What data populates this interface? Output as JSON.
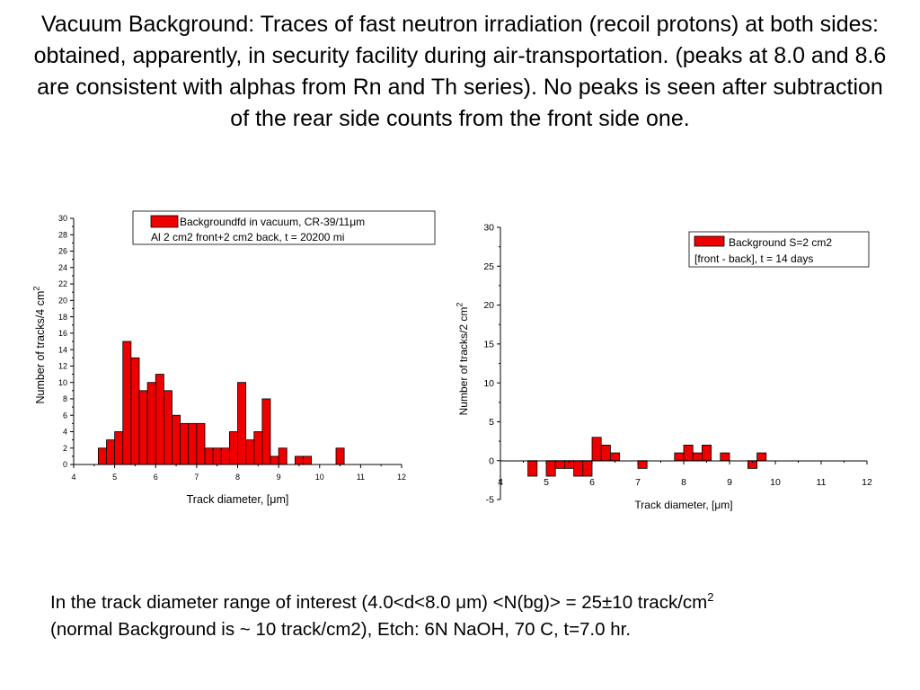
{
  "slide": {
    "title": "Vacuum Background: Traces of fast neutron irradiation (recoil protons) at both sides: obtained, apparently,  in security facility during air-transportation. (peaks at 8.0 and 8.6 are consistent with alphas from Rn and Th series).  No peaks is seen after subtraction of the rear side counts from the front side one.",
    "footer_line1": "In the track diameter range of interest (4.0<d<8.0 μm) <N(bg)> = 25±10 track/cm",
    "footer_sup": "2",
    "footer_line2": "(normal Background is ~ 10 track/cm2), Etch: 6N NaOH, 70 C, t=7.0 hr."
  },
  "colors": {
    "bar_fill": "#ee0000",
    "bar_stroke": "#000000",
    "axis": "#000000"
  },
  "chart_data": [
    {
      "type": "bar",
      "xlabel": "Track diameter, [μm]",
      "ylabel": "Number of tracks/4 cm",
      "ylabel_sup": "2",
      "xlim": [
        4,
        12
      ],
      "ylim": [
        0,
        30
      ],
      "xticks": [
        4,
        5,
        6,
        7,
        8,
        9,
        10,
        11,
        12
      ],
      "yticks": [
        0,
        2,
        4,
        6,
        8,
        10,
        12,
        14,
        16,
        18,
        20,
        22,
        24,
        26,
        28,
        30
      ],
      "bin_width": 0.2,
      "legend": {
        "position": "top-right",
        "line1": "Backgroundfd in vacuum, CR-39/11μm",
        "line2": "Al 2 cm2 front+2 cm2 back, t = 20200 mi"
      },
      "bins": [
        {
          "x": 4.6,
          "y": 2
        },
        {
          "x": 4.8,
          "y": 3
        },
        {
          "x": 5.0,
          "y": 4
        },
        {
          "x": 5.2,
          "y": 15
        },
        {
          "x": 5.4,
          "y": 13
        },
        {
          "x": 5.6,
          "y": 9
        },
        {
          "x": 5.8,
          "y": 10
        },
        {
          "x": 6.0,
          "y": 11
        },
        {
          "x": 6.2,
          "y": 9
        },
        {
          "x": 6.4,
          "y": 6
        },
        {
          "x": 6.6,
          "y": 5
        },
        {
          "x": 6.8,
          "y": 5
        },
        {
          "x": 7.0,
          "y": 5
        },
        {
          "x": 7.2,
          "y": 2
        },
        {
          "x": 7.4,
          "y": 2
        },
        {
          "x": 7.6,
          "y": 2
        },
        {
          "x": 7.8,
          "y": 4
        },
        {
          "x": 8.0,
          "y": 10
        },
        {
          "x": 8.2,
          "y": 3
        },
        {
          "x": 8.4,
          "y": 4
        },
        {
          "x": 8.6,
          "y": 8
        },
        {
          "x": 8.8,
          "y": 1
        },
        {
          "x": 9.0,
          "y": 2
        },
        {
          "x": 9.4,
          "y": 1
        },
        {
          "x": 9.6,
          "y": 1
        },
        {
          "x": 10.4,
          "y": 2
        }
      ]
    },
    {
      "type": "bar",
      "xlabel": "Track diameter, [μm]",
      "ylabel": "Number of tracks/2 cm",
      "ylabel_sup": "2",
      "xlim": [
        4,
        12
      ],
      "ylim": [
        -5,
        30
      ],
      "xticks": [
        4,
        5,
        6,
        7,
        8,
        9,
        10,
        11,
        12
      ],
      "yticks": [
        -5,
        0,
        5,
        10,
        15,
        20,
        25,
        30
      ],
      "bin_width": 0.2,
      "legend": {
        "position": "top-right",
        "line1": "Background S=2 cm2",
        "line2": "[front - back], t = 14 days"
      },
      "bins": [
        {
          "x": 4.6,
          "y": -2
        },
        {
          "x": 5.0,
          "y": -2
        },
        {
          "x": 5.2,
          "y": -1
        },
        {
          "x": 5.4,
          "y": -1
        },
        {
          "x": 5.6,
          "y": -2
        },
        {
          "x": 5.8,
          "y": -2
        },
        {
          "x": 6.0,
          "y": 3
        },
        {
          "x": 6.2,
          "y": 2
        },
        {
          "x": 6.4,
          "y": 1
        },
        {
          "x": 7.0,
          "y": -1
        },
        {
          "x": 7.8,
          "y": 1
        },
        {
          "x": 8.0,
          "y": 2
        },
        {
          "x": 8.2,
          "y": 1
        },
        {
          "x": 8.4,
          "y": 2
        },
        {
          "x": 8.8,
          "y": 1
        },
        {
          "x": 9.4,
          "y": -1
        },
        {
          "x": 9.6,
          "y": 1
        }
      ]
    }
  ]
}
